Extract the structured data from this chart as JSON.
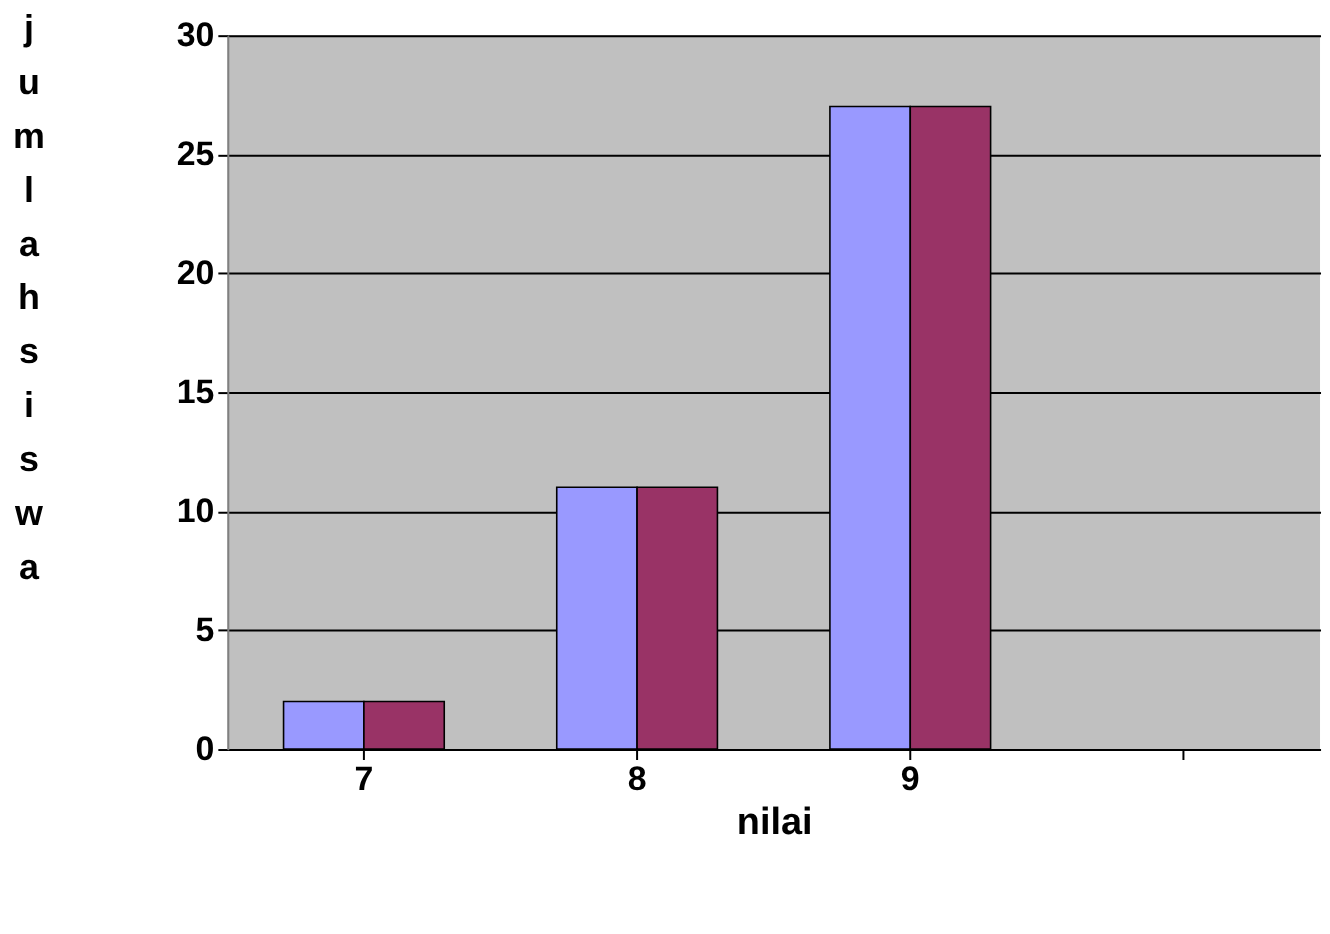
{
  "chart_data": {
    "type": "bar",
    "xlabel": "nilai",
    "ylabel": "jumlahsiswa",
    "categories": [
      "7",
      "8",
      "9",
      null
    ],
    "series": [
      {
        "color": "#9999ff",
        "values": [
          2,
          11,
          27,
          null
        ]
      },
      {
        "color": "#993366",
        "values": [
          2,
          11,
          27,
          null
        ]
      }
    ],
    "ylim": [
      0,
      30
    ],
    "yticks": [
      0,
      5,
      10,
      15,
      20,
      25,
      30
    ],
    "grid": "y"
  }
}
